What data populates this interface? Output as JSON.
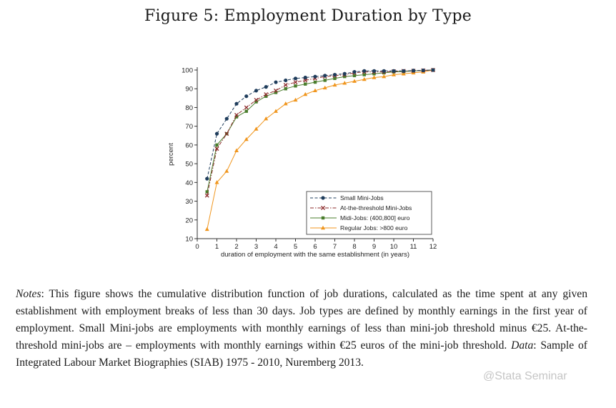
{
  "figure": {
    "title": "Figure 5: Employment Duration by Type"
  },
  "colors": {
    "small_mini": "#1f3d5c",
    "threshold_mini": "#8b2a2a",
    "midi": "#4a7d2c",
    "regular": "#f0961e"
  },
  "chart_data": {
    "type": "line",
    "title": "",
    "xlabel": "duration of employment with the same establishment (in years)",
    "ylabel": "percent",
    "xlim": [
      0,
      12
    ],
    "ylim": [
      10,
      100
    ],
    "xticks": [
      "0",
      "1",
      "2",
      "3",
      "4",
      "5",
      "6",
      "7",
      "8",
      "9",
      "10",
      "11",
      "12"
    ],
    "yticks": [
      "10",
      "20",
      "30",
      "40",
      "50",
      "60",
      "70",
      "80",
      "90",
      "100"
    ],
    "x": [
      0.5,
      1,
      1.5,
      2,
      2.5,
      3,
      3.5,
      4,
      4.5,
      5,
      5.5,
      6,
      6.5,
      7,
      7.5,
      8,
      8.5,
      9,
      9.5,
      10,
      10.5,
      11,
      11.5,
      12
    ],
    "legend_position": "bottom-right",
    "series": [
      {
        "name": "Small Mini-Jobs",
        "marker": "circle",
        "dash": "dash",
        "color_key": "small_mini",
        "values": [
          42,
          66,
          74,
          82,
          86,
          89,
          91,
          93.5,
          94.5,
          95.5,
          96,
          96.5,
          97,
          97.5,
          98,
          99,
          99.5,
          99.5,
          99.5,
          99.5,
          99.5,
          99.7,
          99.8,
          100
        ]
      },
      {
        "name": "At-the-threshold Mini-Jobs",
        "marker": "x",
        "dash": "dashdot",
        "color_key": "threshold_mini",
        "values": [
          33,
          58,
          66,
          76,
          80,
          84,
          87,
          89,
          92,
          93.5,
          94.5,
          95.5,
          96.5,
          97,
          97.5,
          98.5,
          99,
          99,
          99,
          99.3,
          99.5,
          99.6,
          99.8,
          100
        ]
      },
      {
        "name": "Midi-Jobs: (400,800] euro",
        "marker": "square",
        "dash": "solid",
        "color_key": "midi",
        "values": [
          35,
          60,
          66,
          75,
          78,
          83,
          86,
          88,
          90,
          91.5,
          92.5,
          93.5,
          94.5,
          95.5,
          96.5,
          97,
          97.5,
          98,
          98.5,
          99,
          99.2,
          99.5,
          99.7,
          100
        ]
      },
      {
        "name": "Regular Jobs: >800 euro",
        "marker": "triangle",
        "dash": "solid",
        "color_key": "regular",
        "values": [
          15,
          40,
          46,
          57,
          63,
          68.5,
          74,
          78,
          82,
          84,
          87,
          89,
          90.5,
          92,
          93,
          94,
          95,
          96,
          96.5,
          97.5,
          98,
          98.5,
          99,
          100
        ]
      }
    ]
  },
  "notes": {
    "label": "Notes",
    "text": ": This figure shows the cumulative distribution function of job durations, calculated as the time spent at any given establishment with employment breaks of less than 30 days. Job types are defined by monthly earnings in the first year of employment. Small Mini-jobs are employments with monthly earnings of less than mini-job threshold minus €25. At-the-threshold mini-jobs are – employments with monthly earnings within €25 euros of the mini-job threshold. ",
    "data_label": "Data",
    "data_text": ": Sample of Integrated Labour Market Biographies (SIAB) 1975 - 2010, Nuremberg 2013."
  },
  "watermark": {
    "text": "@Stata Seminar"
  }
}
